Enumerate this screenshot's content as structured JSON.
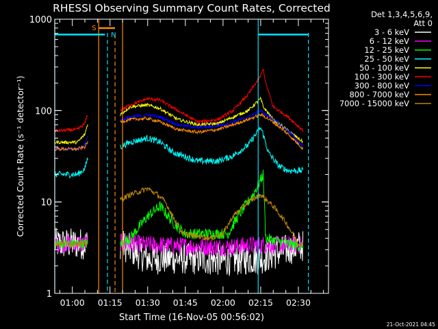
{
  "chart_data": {
    "type": "line",
    "title": "RHESSI Observing Summary Count Rates, Corrected",
    "xlabel": "Start Time (16-Nov-05 00:56:02)",
    "ylabel": "Corrected Count Rate (s⁻¹ detector⁻¹)",
    "yscale": "log",
    "ylim": [
      1,
      1000
    ],
    "xlim_minutes": [
      -7,
      102
    ],
    "x_ticks": [
      {
        "m": 0,
        "label": "01:00"
      },
      {
        "m": 15,
        "label": "01:15"
      },
      {
        "m": 30,
        "label": "01:30"
      },
      {
        "m": 45,
        "label": "01:45"
      },
      {
        "m": 60,
        "label": "02:00"
      },
      {
        "m": 75,
        "label": "02:15"
      },
      {
        "m": 90,
        "label": "02:30"
      }
    ],
    "y_ticks": [
      {
        "v": 1,
        "label": "1"
      },
      {
        "v": 10,
        "label": "10"
      },
      {
        "v": 100,
        "label": "100"
      },
      {
        "v": 1000,
        "label": "1000"
      }
    ],
    "grid": false,
    "legend_placement": "right",
    "legend_header": [
      "Det 1,3,4,5,6,9,",
      "Att 0"
    ],
    "timestamp": "21-Oct-2021 04:45",
    "markers": {
      "orange_solid": [
        10.5,
        20
      ],
      "orange_dashed": [
        17
      ],
      "cyan_solid": [
        -7,
        74
      ],
      "cyan_dashed": [
        14,
        94
      ],
      "flag_S": {
        "label": "S",
        "x_start": 10.5,
        "x_end": 17
      },
      "flag_N": {
        "label": "N",
        "x_start": 14,
        "x_end": 17
      },
      "cyan_flag_left": [
        -7,
        13
      ],
      "cyan_flag_right": [
        74,
        94
      ],
      "cyan_flag_level": 680
    },
    "series": [
      {
        "name": "3 - 6 keV",
        "color": "#ffffff",
        "points": [
          [
            -7,
            3.5
          ],
          [
            6,
            3.5
          ],
          [
            19,
            3.5
          ],
          [
            30,
            2.4
          ],
          [
            45,
            2.4
          ],
          [
            60,
            2.3
          ],
          [
            75,
            2.4
          ],
          [
            90,
            3.3
          ],
          [
            92,
            3.3
          ]
        ]
      },
      {
        "name": "6 - 12 keV",
        "color": "#ff00ff",
        "points": [
          [
            -7,
            3.5
          ],
          [
            6,
            3.5
          ],
          [
            19,
            3.6
          ],
          [
            30,
            3.4
          ],
          [
            45,
            3.3
          ],
          [
            60,
            3.2
          ],
          [
            74,
            3.4
          ],
          [
            90,
            3.4
          ],
          [
            92,
            3.4
          ]
        ]
      },
      {
        "name": "12 - 25 keV",
        "color": "#00ff00",
        "points": [
          [
            -7,
            3.5
          ],
          [
            6,
            3.5
          ],
          [
            19,
            3.5
          ],
          [
            23,
            4
          ],
          [
            30,
            7
          ],
          [
            35,
            9
          ],
          [
            40,
            6
          ],
          [
            45,
            4.5
          ],
          [
            55,
            4.5
          ],
          [
            62,
            4.5
          ],
          [
            66,
            7
          ],
          [
            72,
            12
          ],
          [
            76,
            20
          ],
          [
            77,
            4
          ],
          [
            90,
            3.3
          ],
          [
            92,
            3.3
          ]
        ]
      },
      {
        "name": "25 - 50 keV",
        "color": "#00ffff",
        "points": [
          [
            -7,
            20
          ],
          [
            2,
            20
          ],
          [
            5,
            23
          ],
          [
            6,
            30
          ],
          [
            19,
            40
          ],
          [
            23,
            45
          ],
          [
            30,
            50
          ],
          [
            35,
            45
          ],
          [
            40,
            35
          ],
          [
            50,
            28
          ],
          [
            58,
            28
          ],
          [
            64,
            32
          ],
          [
            70,
            42
          ],
          [
            75,
            65
          ],
          [
            76,
            55
          ],
          [
            78,
            35
          ],
          [
            82,
            25
          ],
          [
            86,
            22
          ],
          [
            92,
            22
          ]
        ]
      },
      {
        "name": "50 - 100 keV",
        "color": "#ffff00",
        "points": [
          [
            -7,
            45
          ],
          [
            2,
            45
          ],
          [
            5,
            55
          ],
          [
            6,
            70
          ],
          [
            19,
            90
          ],
          [
            23,
            110
          ],
          [
            30,
            115
          ],
          [
            35,
            105
          ],
          [
            42,
            80
          ],
          [
            50,
            70
          ],
          [
            58,
            72
          ],
          [
            64,
            85
          ],
          [
            70,
            100
          ],
          [
            75,
            135
          ],
          [
            76,
            110
          ],
          [
            80,
            80
          ],
          [
            86,
            60
          ],
          [
            92,
            45
          ]
        ]
      },
      {
        "name": "100 - 300 keV",
        "color": "#ff0000",
        "points": [
          [
            -7,
            60
          ],
          [
            2,
            62
          ],
          [
            5,
            72
          ],
          [
            6,
            90
          ],
          [
            19,
            100
          ],
          [
            23,
            115
          ],
          [
            30,
            135
          ],
          [
            35,
            130
          ],
          [
            42,
            100
          ],
          [
            50,
            75
          ],
          [
            58,
            80
          ],
          [
            64,
            100
          ],
          [
            70,
            150
          ],
          [
            75,
            240
          ],
          [
            76,
            290
          ],
          [
            77,
            200
          ],
          [
            80,
            110
          ],
          [
            86,
            85
          ],
          [
            92,
            60
          ]
        ]
      },
      {
        "name": "300 - 800 keV",
        "color": "#0000ff",
        "points": [
          [
            -7,
            38
          ],
          [
            2,
            38
          ],
          [
            5,
            42
          ],
          [
            6,
            52
          ],
          [
            19,
            78
          ],
          [
            23,
            85
          ],
          [
            30,
            90
          ],
          [
            35,
            85
          ],
          [
            42,
            70
          ],
          [
            50,
            65
          ],
          [
            58,
            68
          ],
          [
            64,
            75
          ],
          [
            70,
            85
          ],
          [
            75,
            100
          ],
          [
            76,
            95
          ],
          [
            80,
            80
          ],
          [
            86,
            60
          ],
          [
            92,
            40
          ]
        ]
      },
      {
        "name": "800 - 7000 keV",
        "color": "#ff8c00",
        "points": [
          [
            -7,
            38
          ],
          [
            2,
            38
          ],
          [
            5,
            40
          ],
          [
            6,
            45
          ],
          [
            19,
            75
          ],
          [
            23,
            80
          ],
          [
            30,
            82
          ],
          [
            35,
            75
          ],
          [
            42,
            62
          ],
          [
            50,
            58
          ],
          [
            58,
            62
          ],
          [
            64,
            70
          ],
          [
            70,
            80
          ],
          [
            75,
            90
          ],
          [
            76,
            88
          ],
          [
            80,
            75
          ],
          [
            86,
            55
          ],
          [
            92,
            38
          ]
        ]
      },
      {
        "name": "7000 - 15000 keV",
        "color": "#b8860b",
        "points": [
          [
            -7,
            3.5
          ],
          [
            6,
            3.5
          ],
          [
            19,
            10.5
          ],
          [
            23,
            12
          ],
          [
            30,
            14
          ],
          [
            34,
            12
          ],
          [
            37,
            10
          ],
          [
            40,
            7
          ],
          [
            44,
            4.5
          ],
          [
            55,
            4
          ],
          [
            60,
            4.5
          ],
          [
            64,
            7
          ],
          [
            70,
            10
          ],
          [
            75,
            12
          ],
          [
            80,
            9
          ],
          [
            85,
            6
          ],
          [
            90,
            3.5
          ],
          [
            92,
            3.5
          ]
        ]
      }
    ]
  }
}
